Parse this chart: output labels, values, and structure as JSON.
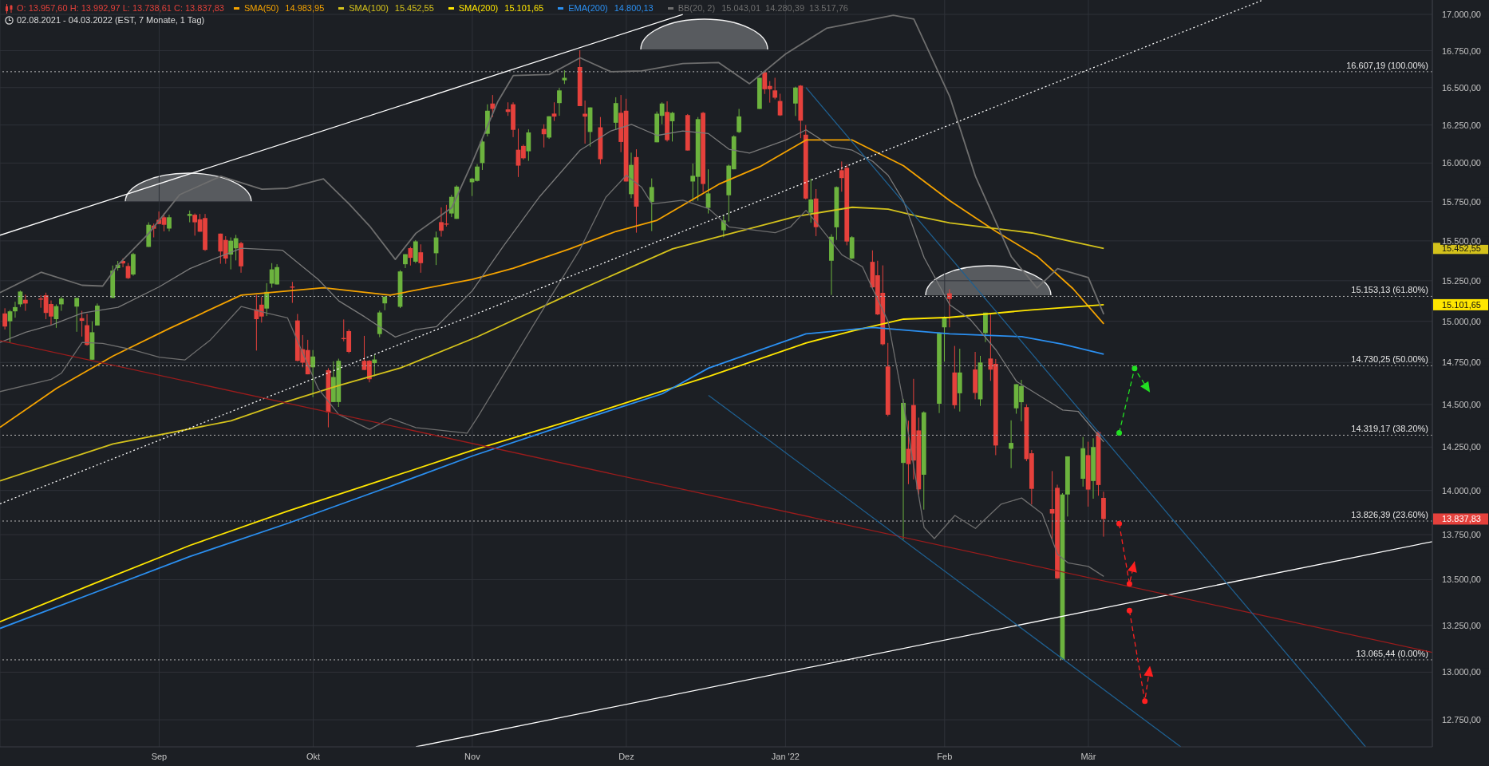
{
  "chart_data": {
    "type": "candlestick",
    "title": "O: 13.957,60  H: 13.992,97  L: 13.738,61  C: 13.837,83",
    "subtitle": "02.08.2021 - 04.03.2022   (EST, 7 Monate, 1 Tag)",
    "x": [
      "2021-08-02",
      "2021-08-03",
      "2021-08-04",
      "2021-08-05",
      "2021-08-06",
      "2021-08-09",
      "2021-08-10",
      "2021-08-11",
      "2021-08-12",
      "2021-08-13",
      "2021-08-16",
      "2021-08-17",
      "2021-08-18",
      "2021-08-19",
      "2021-08-20",
      "2021-08-23",
      "2021-08-24",
      "2021-08-25",
      "2021-08-26",
      "2021-08-27",
      "2021-08-30",
      "2021-08-31",
      "2021-09-01",
      "2021-09-02",
      "2021-09-03",
      "2021-09-07",
      "2021-09-08",
      "2021-09-09",
      "2021-09-10",
      "2021-09-13",
      "2021-09-14",
      "2021-09-15",
      "2021-09-16",
      "2021-09-17",
      "2021-09-20",
      "2021-09-21",
      "2021-09-22",
      "2021-09-23",
      "2021-09-24",
      "2021-09-27",
      "2021-09-28",
      "2021-09-29",
      "2021-09-30",
      "2021-10-01",
      "2021-10-04",
      "2021-10-05",
      "2021-10-06",
      "2021-10-07",
      "2021-10-08",
      "2021-10-11",
      "2021-10-12",
      "2021-10-13",
      "2021-10-14",
      "2021-10-15",
      "2021-10-18",
      "2021-10-19",
      "2021-10-20",
      "2021-10-21",
      "2021-10-22",
      "2021-10-25",
      "2021-10-26",
      "2021-10-27",
      "2021-10-28",
      "2021-10-29",
      "2021-11-01",
      "2021-11-02",
      "2021-11-03",
      "2021-11-04",
      "2021-11-05",
      "2021-11-08",
      "2021-11-09",
      "2021-11-10",
      "2021-11-11",
      "2021-11-12",
      "2021-11-15",
      "2021-11-16",
      "2021-11-17",
      "2021-11-18",
      "2021-11-19",
      "2021-11-22",
      "2021-11-23",
      "2021-11-24",
      "2021-11-26",
      "2021-11-29",
      "2021-11-30",
      "2021-12-01",
      "2021-12-02",
      "2021-12-03",
      "2021-12-06",
      "2021-12-07",
      "2021-12-08",
      "2021-12-09",
      "2021-12-10",
      "2021-12-13",
      "2021-12-14",
      "2021-12-15",
      "2021-12-16",
      "2021-12-17",
      "2021-12-20",
      "2021-12-21",
      "2021-12-22",
      "2021-12-23",
      "2021-12-27",
      "2021-12-28",
      "2021-12-29",
      "2021-12-30",
      "2021-12-31",
      "2022-01-03",
      "2022-01-04",
      "2022-01-05",
      "2022-01-06",
      "2022-01-07",
      "2022-01-10",
      "2022-01-11",
      "2022-01-12",
      "2022-01-13",
      "2022-01-14",
      "2022-01-18",
      "2022-01-19",
      "2022-01-20",
      "2022-01-21",
      "2022-01-24",
      "2022-01-25",
      "2022-01-26",
      "2022-01-27",
      "2022-01-28",
      "2022-01-31",
      "2022-02-01",
      "2022-02-02",
      "2022-02-03",
      "2022-02-04",
      "2022-02-07",
      "2022-02-08",
      "2022-02-09",
      "2022-02-10",
      "2022-02-11",
      "2022-02-14",
      "2022-02-15",
      "2022-02-16",
      "2022-02-17",
      "2022-02-18",
      "2022-02-22",
      "2022-02-23",
      "2022-02-24",
      "2022-02-25",
      "2022-02-28",
      "2022-03-01",
      "2022-03-02",
      "2022-03-03",
      "2022-03-04"
    ],
    "ohlc": [
      [
        15048,
        15080,
        14950,
        14968
      ],
      [
        15000,
        15069,
        14872,
        15061
      ],
      [
        15061,
        15120,
        15022,
        15087
      ],
      [
        15104,
        15189,
        15088,
        15183
      ],
      [
        15132,
        15164,
        15064,
        15109
      ],
      [
        15140,
        15160,
        15083,
        15133
      ],
      [
        15160,
        15176,
        15013,
        15051
      ],
      [
        15106,
        15128,
        14976,
        15029
      ],
      [
        15013,
        15104,
        14960,
        15093
      ],
      [
        15104,
        15152,
        15064,
        15140
      ],
      [
        15090,
        15144,
        14936,
        15144
      ],
      [
        15019,
        15064,
        14907,
        15003
      ],
      [
        14976,
        15045,
        14851,
        14856
      ],
      [
        14767,
        15000,
        14767,
        14933
      ],
      [
        14974,
        15109,
        14974,
        15096
      ],
      [
        15144,
        15345,
        15144,
        15313
      ],
      [
        15329,
        15374,
        15313,
        15350
      ],
      [
        15374,
        15390,
        15334,
        15358
      ],
      [
        15342,
        15361,
        15261,
        15266
      ],
      [
        15289,
        15425,
        15281,
        15417
      ],
      [
        15462,
        15618,
        15462,
        15602
      ],
      [
        15597,
        15610,
        15522,
        15577
      ],
      [
        15634,
        15687,
        15607,
        15607
      ],
      [
        15650,
        15677,
        15560,
        15602
      ],
      [
        15578,
        15666,
        15560,
        15650
      ],
      [
        15659,
        15693,
        15618,
        15671
      ],
      [
        15666,
        15674,
        15533,
        15618
      ],
      [
        15637,
        15671,
        15558,
        15558
      ],
      [
        15645,
        15671,
        15437,
        15443
      ],
      [
        15546,
        15546,
        15356,
        15433
      ],
      [
        15506,
        15530,
        15356,
        15389
      ],
      [
        15414,
        15522,
        15321,
        15501
      ],
      [
        15453,
        15538,
        15377,
        15517
      ],
      [
        15486,
        15494,
        15300,
        15340
      ],
      [
        15073,
        15162,
        14822,
        15013
      ],
      [
        15102,
        15149,
        14992,
        15029
      ],
      [
        15078,
        15235,
        15032,
        15181
      ],
      [
        15232,
        15360,
        15207,
        15321
      ],
      [
        15227,
        15353,
        15227,
        15335
      ],
      [
        15214,
        15243,
        15113,
        15207
      ],
      [
        15005,
        15045,
        14757,
        14760
      ],
      [
        14830,
        14916,
        14721,
        14749
      ],
      [
        14825,
        14887,
        14679,
        14679
      ],
      [
        14721,
        14825,
        14543,
        14786
      ],
      [
        14704,
        14716,
        14365,
        14452
      ],
      [
        14514,
        14757,
        14514,
        14663
      ],
      [
        14514,
        14773,
        14485,
        14760
      ],
      [
        14898,
        15011,
        14878,
        14891
      ],
      [
        14940,
        14951,
        14806,
        14814
      ],
      [
        14760,
        14911,
        14705,
        14705
      ],
      [
        14760,
        14765,
        14631,
        14650
      ],
      [
        14746,
        14797,
        14668,
        14768
      ],
      [
        14922,
        15065,
        14903,
        15054
      ],
      [
        15110,
        15152,
        15068,
        15152
      ],
      [
        15089,
        15316,
        15081,
        15308
      ],
      [
        15353,
        15416,
        15329,
        15416
      ],
      [
        15454,
        15462,
        15345,
        15393
      ],
      [
        15369,
        15505,
        15360,
        15497
      ],
      [
        15428,
        15478,
        15300,
        15360
      ],
      [
        15422,
        15559,
        15348,
        15522
      ],
      [
        15619,
        15713,
        15527,
        15564
      ],
      [
        15610,
        15729,
        15591,
        15603
      ],
      [
        15674,
        15794,
        15651,
        15781
      ],
      [
        15640,
        15855,
        15640,
        15847
      ],
      [
        15875,
        15904,
        15786,
        15899
      ],
      [
        15884,
        15993,
        15880,
        15977
      ],
      [
        16000,
        16158,
        15955,
        16141
      ],
      [
        16192,
        16388,
        16175,
        16345
      ],
      [
        16393,
        16450,
        16303,
        16357
      ],
      [
        16354,
        16401,
        16311,
        16337
      ],
      [
        16388,
        16401,
        16170,
        16218
      ],
      [
        16087,
        16226,
        15909,
        15983
      ],
      [
        16112,
        16121,
        16022,
        16031
      ],
      [
        16077,
        16221,
        16014,
        16201
      ],
      [
        16224,
        16255,
        16102,
        16189
      ],
      [
        16167,
        16308,
        16158,
        16308
      ],
      [
        16326,
        16401,
        16277,
        16306
      ],
      [
        16396,
        16498,
        16311,
        16481
      ],
      [
        16549,
        16617,
        16524,
        16566
      ],
      [
        16639,
        16753,
        16376,
        16376
      ],
      [
        16325,
        16413,
        16127,
        16306
      ],
      [
        16204,
        16367,
        16108,
        16367
      ],
      [
        16235,
        16303,
        15993,
        16025
      ],
      [
        16265,
        16435,
        16218,
        16396
      ],
      [
        16331,
        16450,
        16071,
        16138
      ],
      [
        16345,
        16425,
        15880,
        15880
      ],
      [
        15798,
        16068,
        15772,
        15988
      ],
      [
        16039,
        16090,
        15552,
        15718
      ],
      [
        15748,
        15900,
        15562,
        15844
      ],
      [
        16136,
        16340,
        16136,
        16325
      ],
      [
        16311,
        16401,
        16255,
        16393
      ],
      [
        16337,
        16408,
        16141,
        16150
      ],
      [
        16275,
        16337,
        16141,
        16331
      ],
      [
        16316,
        16323,
        16082,
        16082
      ],
      [
        15880,
        15997,
        15751,
        15917
      ],
      [
        15910,
        16303,
        15756,
        16289
      ],
      [
        16331,
        16337,
        15811,
        15864
      ],
      [
        15710,
        15959,
        15674,
        15803
      ],
      [
        15567,
        15664,
        15523,
        15630
      ],
      [
        15791,
        15990,
        15623,
        15983
      ],
      [
        15959,
        16182,
        15959,
        16175
      ],
      [
        16203,
        16357,
        16197,
        16307
      ],
      [
        16357,
        16566,
        16357,
        16566
      ],
      [
        16603,
        16609,
        16457,
        16489
      ],
      [
        16511,
        16544,
        16399,
        16489
      ],
      [
        16481,
        16566,
        16421,
        16432
      ],
      [
        16410,
        16459,
        16310,
        16314
      ],
      [
        16393,
        16506,
        16310,
        16500
      ],
      [
        16513,
        16517,
        16163,
        16279
      ],
      [
        16186,
        16250,
        15764,
        15770
      ],
      [
        15679,
        15898,
        15615,
        15764
      ],
      [
        15770,
        15831,
        15530,
        15587
      ],
      [
        15375,
        15542,
        15162,
        15526
      ],
      [
        15586,
        15848,
        15506,
        15844
      ],
      [
        15953,
        16010,
        15814,
        15902
      ],
      [
        15969,
        15990,
        15472,
        15496
      ],
      [
        15389,
        15530,
        15385,
        15523
      ],
      [
        15368,
        15440,
        15205,
        15209
      ],
      [
        15284,
        15375,
        15038,
        15042
      ],
      [
        15175,
        15346,
        14852,
        14860
      ],
      [
        14726,
        14868,
        14430,
        14439
      ],
      [
        14158,
        14533,
        13723,
        14509
      ],
      [
        14240,
        14404,
        14036,
        14151
      ],
      [
        14496,
        14652,
        14063,
        14172
      ],
      [
        14347,
        14422,
        13977,
        14006
      ],
      [
        14090,
        14459,
        13891,
        14453
      ],
      [
        14504,
        14933,
        14449,
        14927
      ],
      [
        14963,
        15030,
        14755,
        15021
      ],
      [
        15172,
        15197,
        14963,
        15137
      ],
      [
        14690,
        14850,
        14475,
        14495
      ],
      [
        14566,
        14833,
        14458,
        14690
      ],
      [
        14708,
        14814,
        14530,
        14568
      ],
      [
        14530,
        14790,
        14491,
        14750
      ],
      [
        14928,
        15053,
        14873,
        15053
      ],
      [
        14774,
        15048,
        14640,
        14707
      ],
      [
        14742,
        14771,
        14203,
        14259
      ],
      [
        14240,
        14406,
        14128,
        14274
      ],
      [
        14477,
        14620,
        14445,
        14620
      ],
      [
        14513,
        14646,
        14400,
        14609
      ],
      [
        14484,
        14500,
        14168,
        14180
      ],
      [
        14214,
        14233,
        13920,
        14009
      ],
      [
        13894,
        14111,
        13723,
        13869
      ],
      [
        14015,
        14033,
        13504,
        13507
      ],
      [
        13068,
        13985,
        13065,
        13977
      ],
      [
        13977,
        14196,
        13852,
        14196
      ],
      [
        14067,
        14309,
        14022,
        14243
      ],
      [
        14203,
        14281,
        13908,
        14005
      ],
      [
        14054,
        14301,
        13953,
        14250
      ],
      [
        14337,
        14344,
        13970,
        14031
      ],
      [
        13957.6,
        13992.97,
        13738.61,
        13837.83
      ]
    ],
    "colors": [
      "#e5413c",
      "#6cb33e",
      "#6cb33e",
      "#6cb33e",
      "#e5413c",
      "#e5413c",
      "#e5413c",
      "#e5413c",
      "#6cb33e",
      "#6cb33e",
      "#6cb33e",
      "#e5413c",
      "#e5413c",
      "#6cb33e",
      "#6cb33e",
      "#6cb33e",
      "#6cb33e",
      "#e5413c",
      "#e5413c",
      "#6cb33e",
      "#6cb33e",
      "#e5413c",
      "#e5413c",
      "#e5413c",
      "#6cb33e",
      "#6cb33e",
      "#e5413c",
      "#e5413c",
      "#e5413c",
      "#e5413c",
      "#e5413c",
      "#6cb33e",
      "#6cb33e",
      "#e5413c",
      "#e5413c",
      "#e5413c",
      "#6cb33e",
      "#6cb33e",
      "#6cb33e",
      "#e5413c",
      "#e5413c",
      "#e5413c",
      "#e5413c",
      "#6cb33e",
      "#e5413c",
      "#6cb33e",
      "#6cb33e",
      "#e5413c",
      "#e5413c",
      "#e5413c",
      "#e5413c",
      "#6cb33e",
      "#6cb33e",
      "#6cb33e",
      "#6cb33e",
      "#6cb33e",
      "#e5413c",
      "#6cb33e",
      "#e5413c",
      "#6cb33e",
      "#e5413c",
      "#e5413c",
      "#6cb33e",
      "#6cb33e",
      "#6cb33e",
      "#6cb33e",
      "#6cb33e",
      "#6cb33e",
      "#e5413c",
      "#e5413c",
      "#e5413c",
      "#e5413c",
      "#e5413c",
      "#6cb33e",
      "#e5413c",
      "#6cb33e",
      "#e5413c",
      "#6cb33e",
      "#6cb33e",
      "#e5413c",
      "#e5413c",
      "#6cb33e",
      "#e5413c",
      "#6cb33e",
      "#e5413c",
      "#e5413c",
      "#6cb33e",
      "#e5413c",
      "#6cb33e",
      "#6cb33e",
      "#6cb33e",
      "#e5413c",
      "#6cb33e",
      "#e5413c",
      "#6cb33e",
      "#6cb33e",
      "#e5413c",
      "#6cb33e",
      "#6cb33e",
      "#6cb33e",
      "#6cb33e",
      "#6cb33e",
      "#6cb33e",
      "#e5413c",
      "#e5413c",
      "#e5413c",
      "#e5413c",
      "#6cb33e",
      "#e5413c",
      "#e5413c",
      "#6cb33e",
      "#e5413c",
      "#6cb33e",
      "#6cb33e",
      "#e5413c",
      "#e5413c",
      "#6cb33e",
      "#e5413c",
      "#e5413c",
      "#e5413c",
      "#e5413c",
      "#6cb33e",
      "#e5413c",
      "#e5413c",
      "#e5413c",
      "#6cb33e",
      "#6cb33e",
      "#6cb33e",
      "#e5413c",
      "#e5413c",
      "#6cb33e",
      "#e5413c",
      "#6cb33e",
      "#6cb33e",
      "#e5413c",
      "#e5413c",
      "#6cb33e",
      "#6cb33e",
      "#6cb33e",
      "#e5413c",
      "#e5413c",
      "#e5413c",
      "#e5413c",
      "#6cb33e",
      "#6cb33e",
      "#6cb33e",
      "#e5413c",
      "#6cb33e",
      "#e5413c",
      "#e5413c"
    ],
    "series": [
      {
        "name": "SMA(50)",
        "type": "line",
        "color": "#f5a300",
        "x": [
          "2021-08-01",
          "2021-08-12",
          "2021-08-23",
          "2021-09-03",
          "2021-09-17",
          "2021-10-03",
          "2021-10-16",
          "2021-11-01",
          "2021-11-09",
          "2021-11-20",
          "2021-11-29",
          "2021-12-07",
          "2021-12-19",
          "2021-12-27",
          "2022-01-05",
          "2022-01-14",
          "2022-01-24",
          "2022-02-02",
          "2022-02-11",
          "2022-02-19",
          "2022-02-26",
          "2022-03-04"
        ],
        "values": [
          14365,
          14595,
          14789,
          14956,
          15161,
          15207,
          15161,
          15259,
          15328,
          15450,
          15560,
          15631,
          15862,
          15976,
          16151,
          16151,
          15982,
          15756,
          15560,
          15403,
          15201,
          14983.95
        ]
      },
      {
        "name": "SMA(100)",
        "type": "line",
        "color": "#d4c21c",
        "x": [
          "2021-08-01",
          "2021-08-23",
          "2021-09-15",
          "2021-09-26",
          "2021-10-06",
          "2021-10-18",
          "2021-11-02",
          "2021-11-20",
          "2021-12-10",
          "2021-12-19",
          "2022-01-03",
          "2022-01-14",
          "2022-01-21",
          "2022-01-27",
          "2022-02-02",
          "2022-02-18",
          "2022-03-04"
        ],
        "values": [
          14055,
          14268,
          14403,
          14518,
          14612,
          14717,
          14906,
          15167,
          15450,
          15526,
          15655,
          15714,
          15702,
          15655,
          15614,
          15550,
          15452.55
        ]
      },
      {
        "name": "SMA(200)",
        "type": "line",
        "color": "#ffe600",
        "x": [
          "2021-08-01",
          "2021-08-20",
          "2021-09-07",
          "2021-09-26",
          "2021-10-14",
          "2021-11-01",
          "2021-11-20",
          "2021-12-08",
          "2021-12-17",
          "2022-01-05",
          "2022-01-14",
          "2022-01-24",
          "2022-02-02",
          "2022-02-18",
          "2022-03-04"
        ],
        "values": [
          13270,
          13486,
          13690,
          13882,
          14055,
          14231,
          14403,
          14579,
          14666,
          14868,
          14940,
          15013,
          15024,
          15070,
          15101.65
        ]
      },
      {
        "name": "EMA(200)",
        "type": "line",
        "color": "#2b8ff0",
        "x": [
          "2021-08-01",
          "2021-08-20",
          "2021-09-07",
          "2021-09-26",
          "2021-10-14",
          "2021-11-01",
          "2021-11-20",
          "2021-12-08",
          "2021-12-17",
          "2022-01-05",
          "2022-01-18",
          "2022-02-02",
          "2022-02-16",
          "2022-02-24",
          "2022-03-04"
        ],
        "values": [
          13234,
          13435,
          13628,
          13813,
          14002,
          14198,
          14387,
          14563,
          14716,
          14923,
          14962,
          14923,
          14906,
          14860,
          14800.13
        ]
      },
      {
        "name": "BB(20, 2)",
        "type": "line",
        "color": "#6e6e6e",
        "x": [
          "2021-08-01",
          "2021-08-09",
          "2021-08-17",
          "2021-08-21",
          "2021-08-24",
          "2021-08-30",
          "2021-09-05",
          "2021-09-13",
          "2021-09-21",
          "2021-09-26",
          "2021-10-03",
          "2021-10-08",
          "2021-10-12",
          "2021-10-17",
          "2021-10-21",
          "2021-10-28",
          "2021-11-01",
          "2021-11-06",
          "2021-11-09",
          "2021-11-16",
          "2021-11-22",
          "2021-11-28",
          "2021-12-04",
          "2021-12-12",
          "2021-12-19",
          "2021-12-25",
          "2022-01-01",
          "2022-01-09",
          "2022-01-22",
          "2022-01-26",
          "2022-02-02",
          "2022-02-07",
          "2022-02-14",
          "2022-02-19",
          "2022-02-23",
          "2022-03-01",
          "2022-03-04"
        ],
        "values": [
          15176,
          15303,
          15222,
          15217,
          15349,
          15548,
          15795,
          15914,
          15830,
          15836,
          15897,
          15735,
          15594,
          15383,
          15548,
          15711,
          16005,
          16408,
          16582,
          16588,
          16701,
          16607,
          16613,
          16663,
          16669,
          16526,
          16727,
          16904,
          16994,
          16968,
          16439,
          15914,
          15400,
          15205,
          15326,
          15270,
          15043.01
        ]
      },
      {
        "type": "line",
        "color": "#7a7a7a",
        "x": [
          "2021-08-01",
          "2021-08-06",
          "2021-08-11",
          "2021-08-17",
          "2021-08-24",
          "2021-09-01",
          "2021-09-07",
          "2021-09-11",
          "2021-09-17",
          "2021-09-25",
          "2021-10-02",
          "2021-10-06",
          "2021-10-11",
          "2021-10-17",
          "2021-10-21",
          "2021-10-25",
          "2021-11-01",
          "2021-11-07",
          "2021-11-14",
          "2021-11-22",
          "2021-11-28",
          "2021-12-02",
          "2021-12-07",
          "2021-12-12",
          "2021-12-17",
          "2021-12-21",
          "2021-12-25",
          "2022-01-01",
          "2022-01-05",
          "2022-01-10",
          "2022-01-14",
          "2022-01-18",
          "2022-01-21",
          "2022-01-24",
          "2022-01-28",
          "2022-02-02",
          "2022-02-06",
          "2022-02-11",
          "2022-02-15",
          "2022-02-19",
          "2022-02-24",
          "2022-02-27",
          "2022-03-04"
        ],
        "values": [
          14871,
          14933,
          14977,
          15050,
          15086,
          15212,
          15326,
          15378,
          15453,
          15441,
          15258,
          15125,
          15028,
          14904,
          14949,
          14967,
          15188,
          15465,
          15778,
          16084,
          16211,
          16254,
          16181,
          16211,
          16193,
          16090,
          16065,
          16150,
          16218,
          16108,
          16084,
          16011,
          15920,
          15754,
          15395,
          15101,
          15011,
          14826,
          14637,
          14561,
          14467,
          14459,
          14280.39
        ]
      },
      {
        "type": "line",
        "color": "#6e6e6e",
        "x": [
          "2021-08-01",
          "2021-08-11",
          "2021-08-13",
          "2021-08-17",
          "2021-08-21",
          "2021-08-27",
          "2021-09-01",
          "2021-09-06",
          "2021-09-11",
          "2021-09-17",
          "2021-09-22",
          "2021-09-26",
          "2021-10-02",
          "2021-10-06",
          "2021-10-12",
          "2021-10-16",
          "2021-10-21",
          "2021-10-31",
          "2021-11-02",
          "2021-11-13",
          "2021-11-22",
          "2021-11-27",
          "2021-12-01",
          "2021-12-04",
          "2021-12-06",
          "2021-12-12",
          "2021-12-17",
          "2021-12-21",
          "2021-12-30",
          "2022-01-02",
          "2022-01-05",
          "2022-01-07",
          "2022-01-12",
          "2022-01-16",
          "2022-01-18",
          "2022-01-21",
          "2022-01-24",
          "2022-01-26",
          "2022-01-28",
          "2022-01-30",
          "2022-02-03",
          "2022-02-07",
          "2022-02-12",
          "2022-02-16",
          "2022-02-20",
          "2022-02-23",
          "2022-02-25",
          "2022-03-01",
          "2022-03-04"
        ],
        "values": [
          14576,
          14649,
          14687,
          14871,
          14865,
          14826,
          14782,
          14765,
          14887,
          15091,
          15050,
          15021,
          14593,
          14440,
          14353,
          14418,
          14364,
          14331,
          14423,
          14982,
          15448,
          15778,
          15920,
          15842,
          15735,
          15759,
          15706,
          15589,
          15552,
          15589,
          15694,
          15618,
          15412,
          15337,
          15198,
          14999,
          14505,
          14134,
          13790,
          13728,
          13858,
          13785,
          13922,
          13957,
          13868,
          13641,
          13593,
          13573,
          13517.76
        ]
      },
      {
        "type": "line",
        "color": "#ffffff",
        "x": [
          "2021-08-01",
          "2021-12-12"
        ],
        "values": [
          15536,
          17000
        ]
      },
      {
        "type": "line",
        "color": "#ffffff",
        "line_style": "dotted",
        "x": [
          "2021-08-01",
          "2022-04-04"
        ],
        "values": [
          13924,
          17100
        ]
      },
      {
        "type": "line",
        "color": "#ffffff",
        "x": [
          "2021-10-21",
          "2022-05-07"
        ],
        "values": [
          12610,
          13711
        ]
      },
      {
        "type": "line",
        "color": "#9a1c1c",
        "x": [
          "2021-08-01",
          "2022-05-07"
        ],
        "values": [
          14882,
          13105
        ]
      },
      {
        "type": "line",
        "color": "#1f5f8f",
        "x": [
          "2022-01-05",
          "2022-04-24"
        ],
        "values": [
          16500,
          12610
        ]
      },
      {
        "type": "line",
        "color": "#1f5f8f",
        "x": [
          "2021-12-17",
          "2022-03-19"
        ],
        "values": [
          14554,
          12610
        ]
      },
      {
        "type": "line",
        "color": "#22e022",
        "line_style": "dashed",
        "marker": "circle",
        "x": [
          "2022-03-07",
          "2022-03-10",
          "2022-03-13"
        ],
        "values": [
          14333,
          14714,
          14571
        ]
      },
      {
        "type": "line",
        "color": "#ff2020",
        "line_style": "dashed",
        "marker": "circle",
        "x": [
          "2022-03-07",
          "2022-03-09",
          "2022-03-10"
        ],
        "values": [
          13812,
          13477,
          13600
        ]
      },
      {
        "type": "line",
        "color": "#ff2020",
        "line_style": "dashed",
        "marker": "circle",
        "x": [
          "2022-03-09",
          "2022-03-12",
          "2022-03-13"
        ],
        "values": [
          13331,
          12847,
          13033
        ]
      }
    ],
    "xlim": [
      "2021-08-01",
      "2022-05-07"
    ],
    "xticks": [
      {
        "value": "2021-09-01",
        "label": "Sep"
      },
      {
        "value": "2021-10-01",
        "label": "Okt"
      },
      {
        "value": "2021-11-01",
        "label": "Nov"
      },
      {
        "value": "2021-12-01",
        "label": "Dez"
      },
      {
        "value": "2022-01-01",
        "label": "Jan '22"
      },
      {
        "value": "2022-02-01",
        "label": "Feb"
      },
      {
        "value": "2022-03-01",
        "label": "Mär"
      }
    ],
    "ylim": [
      12610,
      17100
    ],
    "yticks": [
      {
        "value": 15452.55,
        "label": "15.452,55"
      },
      {
        "value": 15101.65,
        "label": "15.101,65"
      },
      {
        "value": 13837.83,
        "label": "13.837,83"
      },
      {
        "value": 12750,
        "label": "12.750,00"
      },
      {
        "value": 13000,
        "label": "13.000,00"
      },
      {
        "value": 13250,
        "label": "13.250,00"
      },
      {
        "value": 13500,
        "label": "13.500,00"
      },
      {
        "value": 13750,
        "label": "13.750,00"
      },
      {
        "value": 14000,
        "label": "14.000,00"
      },
      {
        "value": 14250,
        "label": "14.250,00"
      },
      {
        "value": 14500,
        "label": "14.500,00"
      },
      {
        "value": 14750,
        "label": "14.750,00"
      },
      {
        "value": 15000,
        "label": "15.000,00"
      },
      {
        "value": 15250,
        "label": "15.250,00"
      },
      {
        "value": 15500,
        "label": "15.500,00"
      },
      {
        "value": 15750,
        "label": "15.750,00"
      },
      {
        "value": 16000,
        "label": "16.000,00"
      },
      {
        "value": 16250,
        "label": "16.250,00"
      },
      {
        "value": 16500,
        "label": "16.500,00"
      },
      {
        "value": 16750,
        "label": "16.750,00"
      },
      {
        "value": 17000,
        "label": "17.000,00"
      }
    ],
    "log": true,
    "grid": true,
    "legend": "top left",
    "ref_lines": [
      {
        "axis": "y",
        "value": 16607.19,
        "label": "16.607,19 (100.00%)",
        "color": "#b4b4b4",
        "line_style": "dotted"
      },
      {
        "axis": "y",
        "value": 15153.13,
        "label": "15.153,13 (61.80%)",
        "color": "#b4b4b4",
        "line_style": "dotted"
      },
      {
        "axis": "y",
        "value": 14730.25,
        "label": "14.730,25 (50.00%)",
        "color": "#b4b4b4",
        "line_style": "dotted"
      },
      {
        "axis": "y",
        "value": 14319.17,
        "label": "14.319,17 (38.20%)",
        "color": "#b4b4b4",
        "line_style": "dotted"
      },
      {
        "axis": "y",
        "value": 13826.39,
        "label": "13.826,39 (23.60%)",
        "color": "#b4b4b4",
        "line_style": "dotted"
      },
      {
        "axis": "y",
        "value": 13065.44,
        "label": "13.065,44 (0.00%)",
        "color": "#b4b4b4",
        "line_style": "dotted"
      }
    ],
    "annotations": [
      "14.983,95",
      "15.452,55",
      "15.101,65",
      "14.800,13",
      "15.043,01",
      "14.280,39",
      "13.517,76"
    ]
  }
}
